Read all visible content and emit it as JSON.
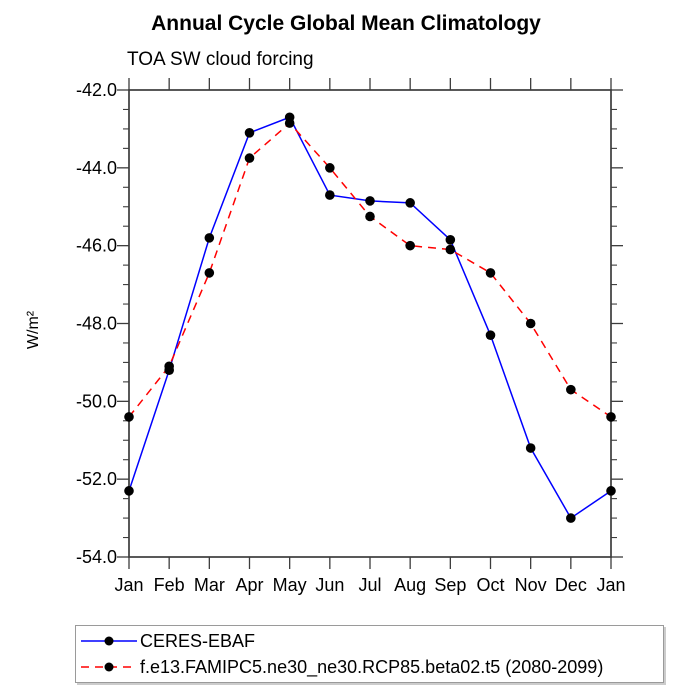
{
  "chart_data": {
    "type": "line",
    "title": "Annual Cycle Global Mean Climatology",
    "subtitle": "TOA SW cloud forcing",
    "ylabel": "W/m²",
    "xlabel": "",
    "categories": [
      "Jan",
      "Feb",
      "Mar",
      "Apr",
      "May",
      "Jun",
      "Jul",
      "Aug",
      "Sep",
      "Oct",
      "Nov",
      "Dec",
      "Jan"
    ],
    "ylim": [
      -54.0,
      -42.0
    ],
    "y_major_ticks": [
      -42.0,
      -44.0,
      -46.0,
      -48.0,
      -50.0,
      -52.0,
      -54.0
    ],
    "y_minor_step": 0.5,
    "grid": false,
    "legend_position": "bottom-left-box",
    "axis_color": "#3c3c3c",
    "text_color": "#000000",
    "marker_color": "#000000",
    "series": [
      {
        "name": "CERES-EBAF",
        "color": "#0000ff",
        "style": "solid",
        "values": [
          -52.3,
          -49.2,
          -45.8,
          -43.1,
          -42.7,
          -44.7,
          -44.85,
          -44.9,
          -45.85,
          -48.3,
          -51.2,
          -53.0,
          -52.3
        ]
      },
      {
        "name": "f.e13.FAMIPC5.ne30_ne30.RCP85.beta02.t5 (2080-2099)",
        "color": "#ff0000",
        "style": "dashed",
        "values": [
          -50.4,
          -49.1,
          -46.7,
          -43.75,
          -42.85,
          -44.0,
          -45.25,
          -46.0,
          -46.1,
          -46.7,
          -48.0,
          -49.7,
          -50.4
        ]
      }
    ]
  }
}
